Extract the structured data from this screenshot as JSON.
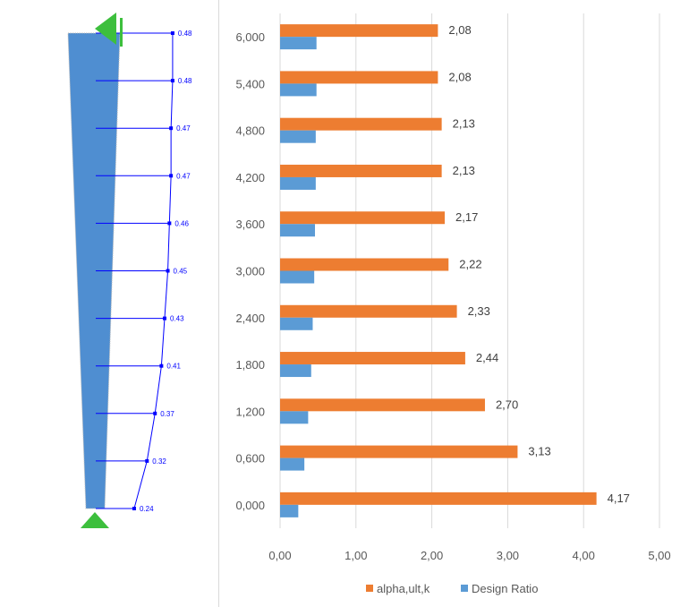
{
  "diagram": {
    "labels": [
      "0.48",
      "0.48",
      "0.47",
      "0.47",
      "0.46",
      "0.45",
      "0.43",
      "0.41",
      "0.37",
      "0.32",
      "0.24"
    ],
    "values": [
      0.48,
      0.48,
      0.47,
      0.47,
      0.46,
      0.45,
      0.43,
      0.41,
      0.37,
      0.32,
      0.24
    ],
    "colors": {
      "member": "#4f8ed1",
      "support": "#3dbf3d",
      "line": "#0000ff"
    }
  },
  "chart_data": {
    "type": "bar",
    "orientation": "horizontal",
    "categories": [
      "6,000",
      "5,400",
      "4,800",
      "4,200",
      "3,600",
      "3,000",
      "2,400",
      "1,800",
      "1,200",
      "0,600",
      "0,000"
    ],
    "series": [
      {
        "name": "alpha,ult,k",
        "color": "#ed7d31",
        "values": [
          2.08,
          2.08,
          2.13,
          2.13,
          2.17,
          2.22,
          2.33,
          2.44,
          2.7,
          3.13,
          4.17
        ],
        "data_labels": [
          "2,08",
          "2,08",
          "2,13",
          "2,13",
          "2,17",
          "2,22",
          "2,33",
          "2,44",
          "2,70",
          "3,13",
          "4,17"
        ]
      },
      {
        "name": "Design Ratio",
        "color": "#5b9bd5",
        "values": [
          0.48,
          0.48,
          0.47,
          0.47,
          0.46,
          0.45,
          0.43,
          0.41,
          0.37,
          0.32,
          0.24
        ]
      }
    ],
    "x_ticks": [
      "0,00",
      "1,00",
      "2,00",
      "3,00",
      "4,00",
      "5,00"
    ],
    "xlim": [
      0,
      5
    ],
    "grid": true,
    "legend": "bottom"
  }
}
